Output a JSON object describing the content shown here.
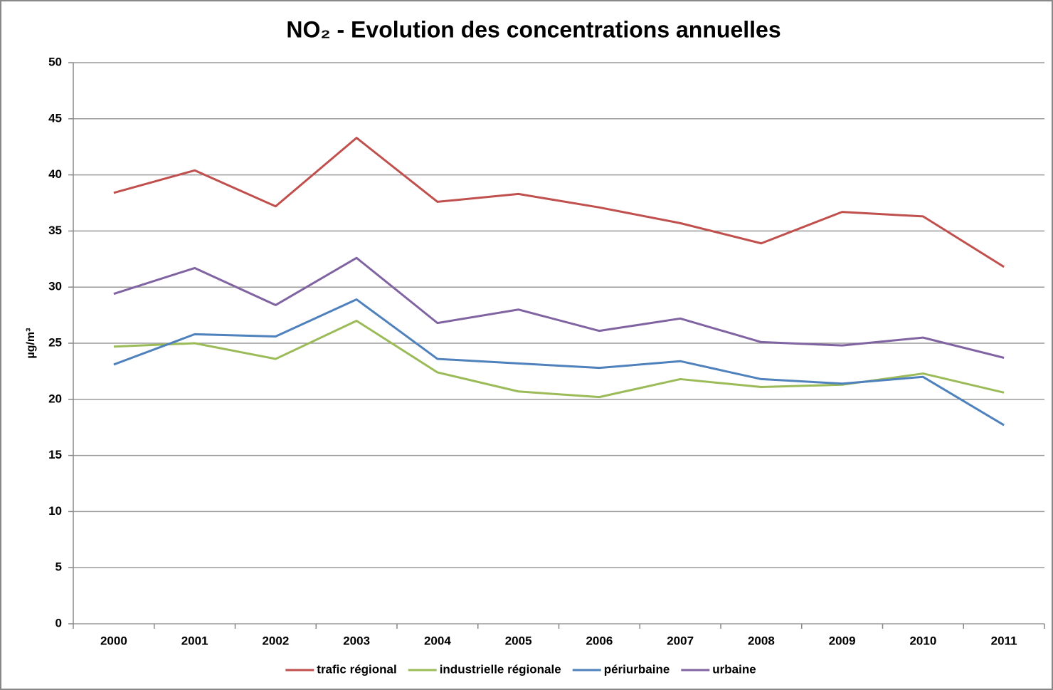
{
  "chart_data": {
    "type": "line",
    "title": "NO₂ - Evolution des concentrations annuelles",
    "y_label": "µg/m³",
    "categories": [
      "2000",
      "2001",
      "2002",
      "2003",
      "2004",
      "2005",
      "2006",
      "2007",
      "2008",
      "2009",
      "2010",
      "2011"
    ],
    "series": [
      {
        "name": "trafic régional",
        "color": "#c0504d",
        "values": [
          38.4,
          40.4,
          37.2,
          43.3,
          37.6,
          38.3,
          37.1,
          35.7,
          33.9,
          36.7,
          36.3,
          31.8
        ]
      },
      {
        "name": "industrielle régionale",
        "color": "#9bbb59",
        "values": [
          24.7,
          25.0,
          23.6,
          27.0,
          22.4,
          20.7,
          20.2,
          21.8,
          21.1,
          21.3,
          22.3,
          20.6
        ]
      },
      {
        "name": "périurbaine",
        "color": "#4f81bd",
        "values": [
          23.1,
          25.8,
          25.6,
          28.9,
          23.6,
          23.2,
          22.8,
          23.4,
          21.8,
          21.4,
          22.0,
          17.7
        ]
      },
      {
        "name": "urbaine",
        "color": "#8064a2",
        "values": [
          29.4,
          31.7,
          28.4,
          32.6,
          26.8,
          28.0,
          26.1,
          27.2,
          25.1,
          24.8,
          25.5,
          23.7
        ]
      }
    ],
    "ylim": [
      0,
      50
    ],
    "yticks": [
      0,
      5,
      10,
      15,
      20,
      25,
      30,
      35,
      40,
      45,
      50
    ],
    "grid": true,
    "legend": "bottom"
  }
}
